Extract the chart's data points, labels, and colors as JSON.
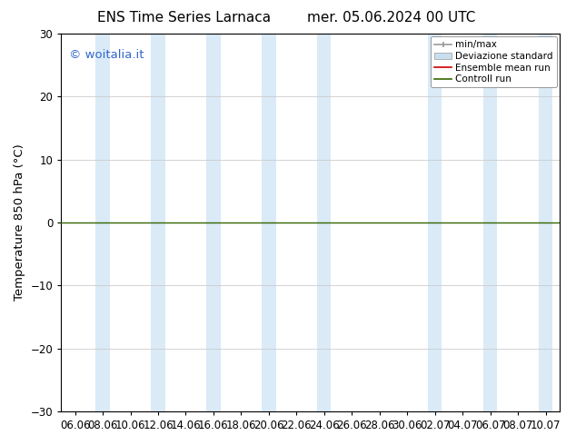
{
  "title_left": "ENS Time Series Larnaca",
  "title_right": "mer. 05.06.2024 00 UTC",
  "ylabel": "Temperature 850 hPa (°C)",
  "ylim": [
    -30,
    30
  ],
  "yticks": [
    -30,
    -20,
    -10,
    0,
    10,
    20,
    30
  ],
  "xlabel_ticks": [
    "06.06",
    "08.06",
    "10.06",
    "12.06",
    "14.06",
    "16.06",
    "18.06",
    "20.06",
    "22.06",
    "24.06",
    "26.06",
    "28.06",
    "30.06",
    "02.07",
    "04.07",
    "06.07",
    "08.07",
    "10.07"
  ],
  "n_ticks": 18,
  "watermark": "© woitalia.it",
  "watermark_color": "#3366cc",
  "background_color": "#ffffff",
  "shaded_indices": [
    1,
    3,
    5,
    7,
    9,
    13,
    15,
    17
  ],
  "shaded_color": "#daeaf7",
  "green_line_y": 0,
  "green_line_color": "#336600",
  "red_line_color": "#cc0000",
  "grey_color": "#999999",
  "light_blue_fill": "#c8dff0",
  "legend_labels": [
    "min/max",
    "Deviazione standard",
    "Ensemble mean run",
    "Controll run"
  ],
  "title_fontsize": 11,
  "tick_fontsize": 8.5,
  "ylabel_fontsize": 9.5
}
